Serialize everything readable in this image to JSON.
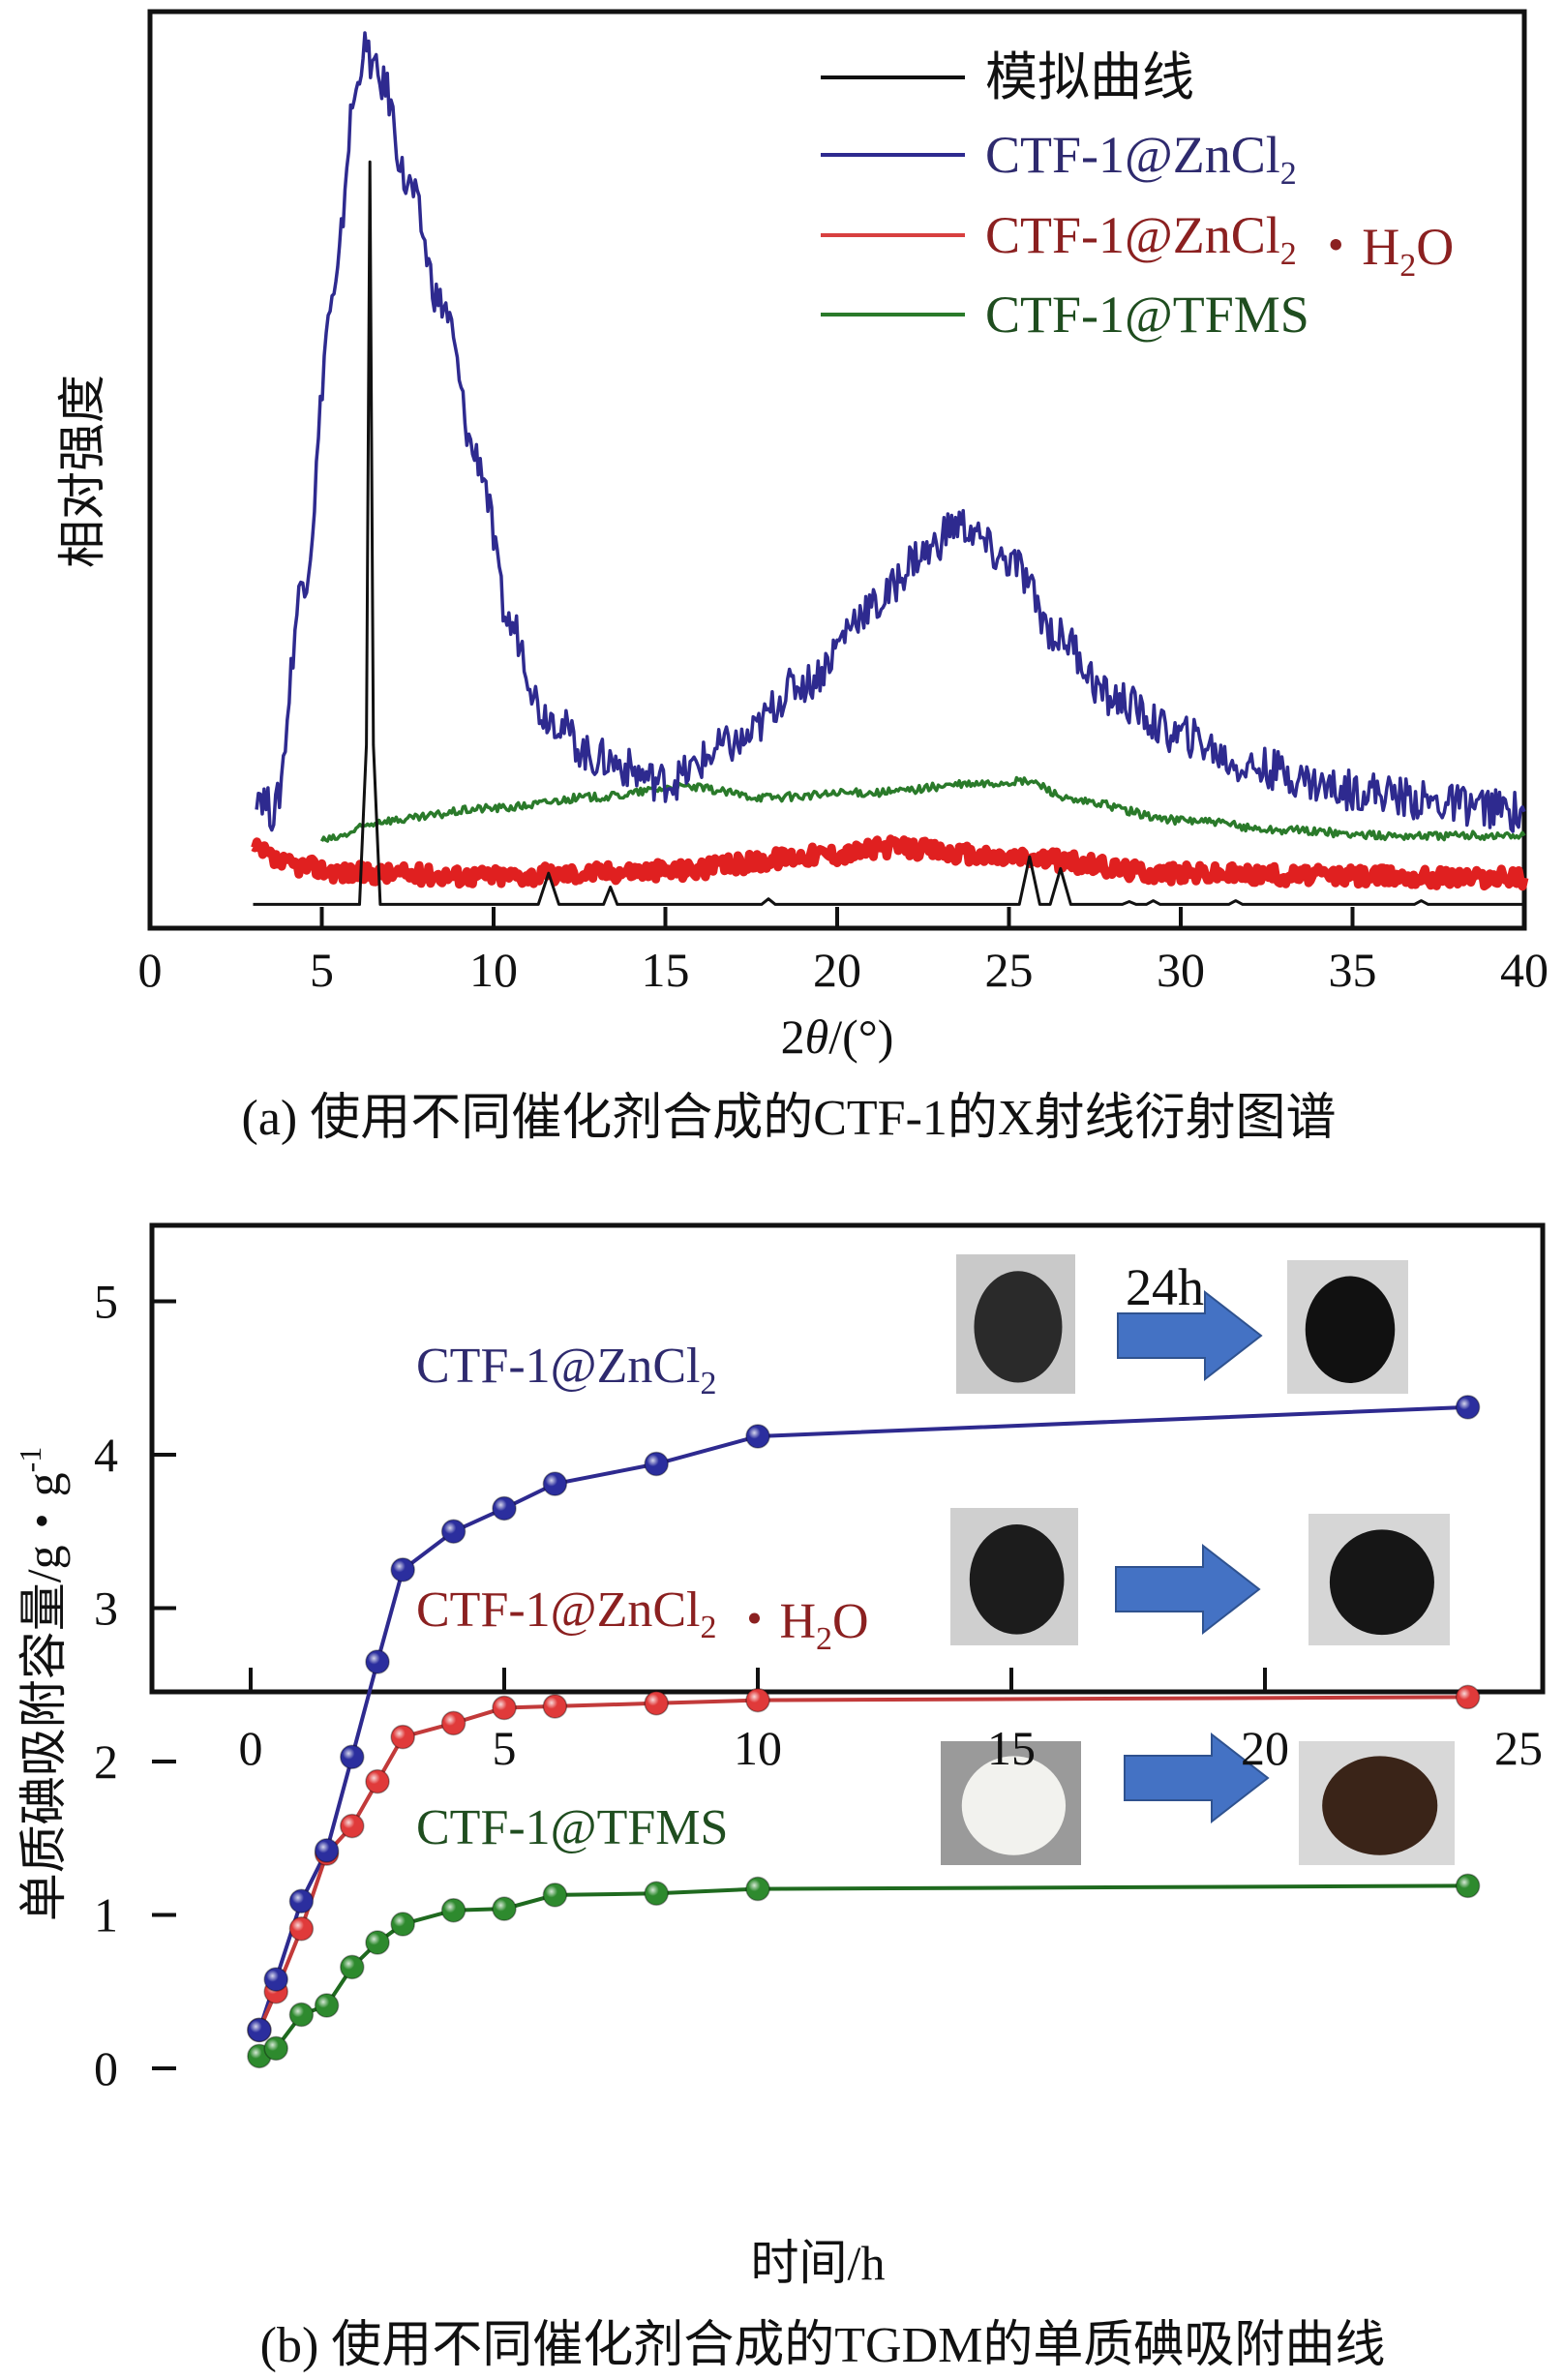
{
  "chart_data": [
    {
      "type": "line",
      "panel": "a",
      "caption": "(a) 使用不同催化剂合成的CTF-1的X射线衍射图谱",
      "xlabel": "2θ/(°)",
      "ylabel": "相对强度",
      "xlim": [
        0,
        40
      ],
      "xticks": [
        0,
        5,
        10,
        15,
        20,
        25,
        30,
        35,
        40
      ],
      "xtick_labels": [
        "0",
        "5",
        "10",
        "15",
        "20",
        "25",
        "30",
        "35",
        "40"
      ],
      "ylim": [
        0,
        100
      ],
      "y_units": "relative (arbitrary, no tick labels)",
      "grid": false,
      "legend_position": "top-right",
      "series": [
        {
          "name": "模拟曲线",
          "color": "#111111",
          "x": [
            3,
            6.1,
            6.3,
            6.4,
            6.5,
            6.7,
            11.3,
            11.6,
            11.9,
            13.2,
            13.4,
            13.6,
            17.8,
            18.0,
            18.2,
            25.3,
            25.6,
            25.9,
            26.2,
            26.5,
            26.8,
            28.3,
            28.5,
            28.7,
            29.0,
            29.2,
            29.4,
            31.4,
            31.6,
            31.8,
            36.8,
            37.0,
            37.2,
            40
          ],
          "y": [
            2.6,
            2.6,
            20,
            83.6,
            20,
            2.6,
            2.6,
            6.0,
            2.6,
            2.6,
            4.5,
            2.6,
            2.6,
            3.2,
            2.6,
            2.6,
            7.8,
            2.6,
            2.6,
            6.5,
            2.6,
            2.6,
            2.9,
            2.6,
            2.6,
            3.0,
            2.6,
            2.6,
            3.0,
            2.6,
            2.6,
            3.0,
            2.6,
            2.6
          ]
        },
        {
          "name": "CTF-1@ZnCl₂",
          "color": "#2e2a8f",
          "x": [
            3.1,
            3.6,
            4.5,
            5.3,
            6.0,
            6.2,
            6.8,
            7.5,
            8.5,
            9.5,
            10.5,
            11.5,
            13,
            15,
            17,
            19,
            21,
            22.5,
            23.5,
            25,
            26.5,
            28,
            30,
            32,
            35,
            38,
            40
          ],
          "y": [
            15.1,
            12.7,
            38.3,
            68,
            91,
            95.8,
            92,
            81,
            68,
            51.5,
            33,
            23.4,
            18.5,
            16,
            20,
            26.7,
            35,
            40.8,
            44,
            40,
            31.7,
            25,
            21,
            17.6,
            15.1,
            13.5,
            12.7
          ]
        },
        {
          "name": "CTF-1@ZnCl₂・H₂O",
          "color": "#e02020",
          "x": [
            3,
            4,
            6,
            10,
            15,
            20,
            21.5,
            25,
            30,
            35,
            40
          ],
          "y": [
            8.5,
            6.9,
            6.0,
            5.7,
            6.3,
            8.1,
            8.8,
            7.7,
            6.0,
            5.7,
            5.5
          ]
        },
        {
          "name": "CTF-1@TFMS",
          "color": "#2a7a2a",
          "x": [
            5,
            7,
            10,
            13,
            15.5,
            18,
            21,
            24,
            25.5,
            27,
            30,
            33,
            36,
            40
          ],
          "y": [
            9.6,
            11.8,
            13.1,
            14.3,
            15.4,
            14.3,
            14.8,
            15.7,
            16.0,
            13.8,
            11.8,
            10.7,
            10.1,
            10.1
          ]
        }
      ],
      "legend": [
        {
          "label": "模拟曲线",
          "color": "#111111",
          "text_color": "#111111"
        },
        {
          "label": "CTF-1@ZnCl",
          "sub": "2",
          "tail": "",
          "color": "#2e2a8f",
          "text_color": "#2e2a6e"
        },
        {
          "label": "CTF-1@ZnCl",
          "sub": "2",
          "tail": "・H₂O",
          "color": "#d84040",
          "text_color": "#8b2020"
        },
        {
          "label": "CTF-1@TFMS",
          "color": "#2a7a2a",
          "text_color": "#1f4d1f"
        }
      ]
    },
    {
      "type": "line",
      "panel": "b",
      "caption": "(b) 使用不同催化剂合成的TGDM的单质碘吸附曲线",
      "xlabel": "时间/h",
      "ylabel": "单质碘吸附容量/g・g⁻¹",
      "xlim": [
        -2,
        25
      ],
      "ylim": [
        -0.4,
        5.5
      ],
      "xticks": [
        0,
        5,
        10,
        15,
        20,
        25
      ],
      "yticks": [
        0,
        1,
        2,
        3,
        4,
        5
      ],
      "grid": false,
      "series": [
        {
          "name": "CTF-1@ZnCl₂",
          "color": "#2e2a8f",
          "marker_color": "#2b2e9e",
          "x": [
            0.17,
            0.5,
            1,
            1.5,
            2,
            2.5,
            3,
            4,
            5,
            6,
            8,
            10,
            24
          ],
          "y": [
            0.25,
            0.58,
            1.09,
            1.42,
            2.03,
            2.65,
            3.25,
            3.5,
            3.65,
            3.81,
            3.94,
            4.12,
            4.31
          ]
        },
        {
          "name": "CTF-1@ZnCl₂・H₂O",
          "color": "#c23a3a",
          "marker_color": "#e03a3a",
          "x": [
            0.17,
            0.5,
            1,
            1.5,
            2,
            2.5,
            3,
            4,
            5,
            6,
            8,
            10,
            24
          ],
          "y": [
            0.25,
            0.5,
            0.91,
            1.4,
            1.58,
            1.87,
            2.16,
            2.25,
            2.35,
            2.36,
            2.38,
            2.4,
            2.42
          ]
        },
        {
          "name": "CTF-1@TFMS",
          "color": "#1f6a1f",
          "marker_color": "#2e8a2e",
          "x": [
            0.17,
            0.5,
            1,
            1.5,
            2,
            2.5,
            3,
            4,
            5,
            6,
            8,
            10,
            24
          ],
          "y": [
            0.08,
            0.13,
            0.35,
            0.41,
            0.66,
            0.82,
            0.94,
            1.03,
            1.04,
            1.13,
            1.14,
            1.17,
            1.19
          ]
        }
      ],
      "series_labels": [
        {
          "label": "CTF-1@ZnCl",
          "sub": "2",
          "tail": "",
          "color": "#2e2a6e"
        },
        {
          "label": "CTF-1@ZnCl",
          "sub": "2",
          "tail": "・H₂O",
          "color": "#8b2020"
        },
        {
          "label": "CTF-1@TFMS",
          "color": "#1f4d1f"
        }
      ],
      "annotations": {
        "arrow_label": "24h",
        "photo_rows": [
          {
            "series": "CTF-1@ZnCl₂",
            "before": "dark powder",
            "after": "black pellet"
          },
          {
            "series": "CTF-1@ZnCl₂・H₂O",
            "before": "black powder",
            "after": "black pellet"
          },
          {
            "series": "CTF-1@TFMS",
            "before": "white powder",
            "after": "dark brown powder"
          }
        ],
        "arrow_color": "#4472c4"
      }
    }
  ]
}
